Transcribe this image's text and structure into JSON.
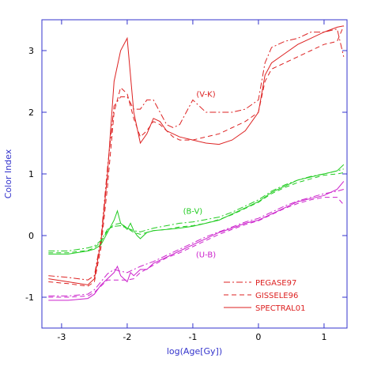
{
  "chart_data": {
    "type": "line",
    "xlabel": "log(Age[Gy])",
    "ylabel": "Color Index",
    "xlim": [
      -3.3,
      1.35
    ],
    "ylim": [
      -1.5,
      3.5
    ],
    "xticks": [
      -3,
      -2,
      -1,
      0,
      1
    ],
    "yticks": [
      -1,
      0,
      1,
      2,
      3
    ],
    "grid": false,
    "legend": {
      "placement": "bottom-right",
      "color": "#dd2222",
      "entries": [
        {
          "label": "PEGASE97",
          "dash": "dashdot"
        },
        {
          "label": "GISSELE96",
          "dash": "dashed"
        },
        {
          "label": "SPECTRAL01",
          "dash": "solid"
        }
      ]
    },
    "annotations": [
      {
        "text": "(V-K)",
        "x": -0.8,
        "y": 2.25,
        "color": "#dd2222"
      },
      {
        "text": "(B-V)",
        "x": -1.0,
        "y": 0.35,
        "color": "#22cc22"
      },
      {
        "text": "(U-B)",
        "x": -0.8,
        "y": -0.35,
        "color": "#cc22cc"
      }
    ],
    "series": [
      {
        "group": "V-K",
        "color": "#dd2222",
        "dash": "solid",
        "x": [
          -3.2,
          -2.9,
          -2.6,
          -2.5,
          -2.4,
          -2.3,
          -2.2,
          -2.1,
          -2.0,
          -1.9,
          -1.8,
          -1.7,
          -1.6,
          -1.5,
          -1.4,
          -1.3,
          -1.2,
          -1.0,
          -0.8,
          -0.6,
          -0.4,
          -0.2,
          0.0,
          0.1,
          0.2,
          0.4,
          0.6,
          0.8,
          1.0,
          1.2,
          1.3
        ],
        "y": [
          -0.7,
          -0.75,
          -0.8,
          -0.7,
          -0.1,
          1.0,
          2.5,
          3.0,
          3.2,
          2.0,
          1.5,
          1.65,
          1.9,
          1.85,
          1.7,
          1.65,
          1.6,
          1.55,
          1.5,
          1.48,
          1.55,
          1.7,
          2.0,
          2.6,
          2.8,
          2.95,
          3.1,
          3.2,
          3.3,
          3.38,
          3.4
        ]
      },
      {
        "group": "V-K",
        "color": "#dd2222",
        "dash": "dashed",
        "x": [
          -3.2,
          -2.9,
          -2.6,
          -2.5,
          -2.4,
          -2.3,
          -2.2,
          -2.1,
          -2.0,
          -1.9,
          -1.8,
          -1.7,
          -1.6,
          -1.5,
          -1.4,
          -1.3,
          -1.2,
          -1.0,
          -0.8,
          -0.6,
          -0.4,
          -0.2,
          0.0,
          0.1,
          0.2,
          0.4,
          0.6,
          0.8,
          1.0,
          1.2,
          1.3
        ],
        "y": [
          -0.75,
          -0.78,
          -0.82,
          -0.75,
          -0.2,
          0.8,
          2.0,
          2.4,
          2.3,
          1.9,
          1.6,
          1.7,
          1.85,
          1.8,
          1.7,
          1.6,
          1.55,
          1.55,
          1.6,
          1.65,
          1.75,
          1.85,
          2.0,
          2.5,
          2.7,
          2.8,
          2.9,
          3.0,
          3.1,
          3.15,
          3.4
        ]
      },
      {
        "group": "V-K",
        "color": "#dd2222",
        "dash": "dashdot",
        "x": [
          -3.2,
          -2.9,
          -2.6,
          -2.5,
          -2.4,
          -2.3,
          -2.2,
          -2.1,
          -2.0,
          -1.9,
          -1.8,
          -1.7,
          -1.6,
          -1.5,
          -1.4,
          -1.3,
          -1.2,
          -1.0,
          -0.8,
          -0.6,
          -0.4,
          -0.2,
          0.0,
          0.1,
          0.2,
          0.4,
          0.6,
          0.8,
          1.0,
          1.2,
          1.3
        ],
        "y": [
          -0.65,
          -0.68,
          -0.72,
          -0.65,
          -0.05,
          1.1,
          2.1,
          2.25,
          2.25,
          2.05,
          2.05,
          2.2,
          2.2,
          2.0,
          1.8,
          1.75,
          1.8,
          2.2,
          2.0,
          2.0,
          2.0,
          2.05,
          2.2,
          2.8,
          3.05,
          3.15,
          3.2,
          3.3,
          3.3,
          3.35,
          2.9
        ]
      },
      {
        "group": "B-V",
        "color": "#22cc22",
        "dash": "solid",
        "x": [
          -3.2,
          -2.9,
          -2.6,
          -2.5,
          -2.4,
          -2.3,
          -2.2,
          -2.15,
          -2.1,
          -2.0,
          -1.95,
          -1.9,
          -1.85,
          -1.8,
          -1.7,
          -1.6,
          -1.4,
          -1.2,
          -1.0,
          -0.8,
          -0.6,
          -0.4,
          -0.2,
          0.0,
          0.2,
          0.4,
          0.6,
          0.8,
          1.0,
          1.2,
          1.3
        ],
        "y": [
          -0.3,
          -0.3,
          -0.25,
          -0.22,
          -0.15,
          0.05,
          0.25,
          0.4,
          0.2,
          0.1,
          0.2,
          0.08,
          0.0,
          -0.05,
          0.05,
          0.08,
          0.1,
          0.12,
          0.15,
          0.2,
          0.25,
          0.35,
          0.45,
          0.55,
          0.7,
          0.8,
          0.9,
          0.95,
          1.0,
          1.05,
          1.15
        ]
      },
      {
        "group": "B-V",
        "color": "#22cc22",
        "dash": "dashed",
        "x": [
          -3.2,
          -2.9,
          -2.6,
          -2.5,
          -2.4,
          -2.3,
          -2.2,
          -2.1,
          -2.0,
          -1.9,
          -1.8,
          -1.6,
          -1.4,
          -1.2,
          -1.0,
          -0.8,
          -0.6,
          -0.4,
          -0.2,
          0.0,
          0.2,
          0.4,
          0.6,
          0.8,
          1.0,
          1.2,
          1.3
        ],
        "y": [
          -0.28,
          -0.28,
          -0.24,
          -0.2,
          -0.1,
          0.08,
          0.18,
          0.2,
          0.12,
          0.05,
          0.02,
          0.08,
          0.1,
          0.14,
          0.16,
          0.2,
          0.26,
          0.34,
          0.44,
          0.54,
          0.68,
          0.78,
          0.86,
          0.92,
          0.98,
          1.0,
          1.02
        ]
      },
      {
        "group": "B-V",
        "color": "#22cc22",
        "dash": "dashdot",
        "x": [
          -3.2,
          -2.9,
          -2.6,
          -2.5,
          -2.4,
          -2.3,
          -2.2,
          -2.1,
          -2.0,
          -1.9,
          -1.8,
          -1.6,
          -1.4,
          -1.2,
          -1.0,
          -0.8,
          -0.6,
          -0.4,
          -0.2,
          0.0,
          0.2,
          0.4,
          0.6,
          0.8,
          1.0,
          1.2,
          1.3
        ],
        "y": [
          -0.25,
          -0.25,
          -0.2,
          -0.17,
          -0.08,
          0.1,
          0.15,
          0.16,
          0.12,
          0.08,
          0.06,
          0.12,
          0.16,
          0.2,
          0.22,
          0.26,
          0.3,
          0.38,
          0.48,
          0.58,
          0.72,
          0.82,
          0.9,
          0.96,
          1.0,
          1.05,
          1.08
        ]
      },
      {
        "group": "U-B",
        "color": "#cc22cc",
        "dash": "solid",
        "x": [
          -3.2,
          -2.9,
          -2.6,
          -2.5,
          -2.4,
          -2.3,
          -2.2,
          -2.15,
          -2.1,
          -2.0,
          -1.95,
          -1.9,
          -1.8,
          -1.7,
          -1.6,
          -1.4,
          -1.2,
          -1.0,
          -0.8,
          -0.6,
          -0.4,
          -0.2,
          0.0,
          0.2,
          0.4,
          0.6,
          0.8,
          1.0,
          1.2,
          1.3
        ],
        "y": [
          -1.05,
          -1.05,
          -1.02,
          -0.95,
          -0.8,
          -0.7,
          -0.6,
          -0.5,
          -0.65,
          -0.75,
          -0.6,
          -0.65,
          -0.55,
          -0.55,
          -0.45,
          -0.35,
          -0.25,
          -0.15,
          -0.05,
          0.05,
          0.12,
          0.2,
          0.25,
          0.35,
          0.45,
          0.55,
          0.6,
          0.65,
          0.75,
          0.88
        ]
      },
      {
        "group": "U-B",
        "color": "#cc22cc",
        "dash": "dashed",
        "x": [
          -3.2,
          -2.9,
          -2.6,
          -2.5,
          -2.4,
          -2.3,
          -2.2,
          -2.1,
          -2.0,
          -1.9,
          -1.8,
          -1.6,
          -1.4,
          -1.2,
          -1.0,
          -0.8,
          -0.6,
          -0.4,
          -0.2,
          0.0,
          0.2,
          0.4,
          0.6,
          0.8,
          1.0,
          1.2,
          1.3
        ],
        "y": [
          -1.0,
          -1.0,
          -0.98,
          -0.92,
          -0.82,
          -0.72,
          -0.72,
          -0.72,
          -0.72,
          -0.7,
          -0.6,
          -0.48,
          -0.36,
          -0.28,
          -0.18,
          -0.08,
          0.02,
          0.1,
          0.18,
          0.24,
          0.34,
          0.44,
          0.52,
          0.58,
          0.62,
          0.62,
          0.5
        ]
      },
      {
        "group": "U-B",
        "color": "#cc22cc",
        "dash": "dashdot",
        "x": [
          -3.2,
          -2.9,
          -2.6,
          -2.5,
          -2.4,
          -2.3,
          -2.2,
          -2.1,
          -2.0,
          -1.9,
          -1.8,
          -1.6,
          -1.4,
          -1.2,
          -1.0,
          -0.8,
          -0.6,
          -0.4,
          -0.2,
          0.0,
          0.2,
          0.4,
          0.6,
          0.8,
          1.0,
          1.2,
          1.3
        ],
        "y": [
          -0.98,
          -0.98,
          -0.95,
          -0.88,
          -0.75,
          -0.62,
          -0.55,
          -0.58,
          -0.6,
          -0.55,
          -0.5,
          -0.42,
          -0.32,
          -0.22,
          -0.12,
          -0.02,
          0.06,
          0.14,
          0.22,
          0.28,
          0.38,
          0.48,
          0.56,
          0.62,
          0.68,
          0.72,
          0.75
        ]
      }
    ]
  }
}
